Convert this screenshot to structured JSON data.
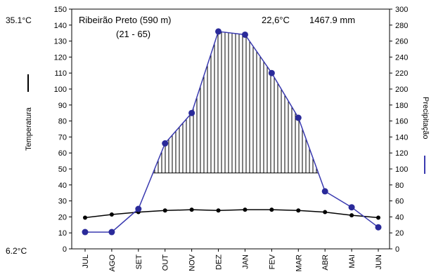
{
  "chart_data": {
    "type": "line",
    "station": "Ribeirão Preto (590 m)",
    "period": "(21 - 65)",
    "mean_temp": "22,6°C",
    "annual_precip": "1467.9 mm",
    "temp_max_label": "35.1°C",
    "temp_min_label": "6.2°C",
    "ylabel_left": "Temperatura",
    "ylabel_right": "Precipitação",
    "categories": [
      "JUL",
      "AGO",
      "SET",
      "OUT",
      "NOV",
      "DEZ",
      "JAN",
      "FEV",
      "MAR",
      "ABR",
      "MAI",
      "JUN"
    ],
    "ylim_left": [
      0,
      150
    ],
    "ylim_right": [
      0,
      300
    ],
    "yticks_left": [
      0,
      10,
      20,
      30,
      40,
      50,
      60,
      70,
      80,
      90,
      100,
      110,
      120,
      130,
      140,
      150
    ],
    "yticks_right": [
      0,
      20,
      40,
      60,
      80,
      100,
      120,
      140,
      160,
      180,
      200,
      220,
      240,
      260,
      280,
      300
    ],
    "series": [
      {
        "axis": "left",
        "color": "#000000",
        "values": [
          19.5,
          21.5,
          23.0,
          24.0,
          24.5,
          24.0,
          24.5,
          24.5,
          24.0,
          23.0,
          21.0,
          19.5
        ]
      },
      {
        "axis": "right",
        "color": "#3a3ab0",
        "values": [
          21,
          21,
          50,
          132,
          170,
          272,
          268,
          220,
          164,
          72,
          52,
          27
        ]
      }
    ],
    "hatch_threshold": 95,
    "grid": false
  }
}
